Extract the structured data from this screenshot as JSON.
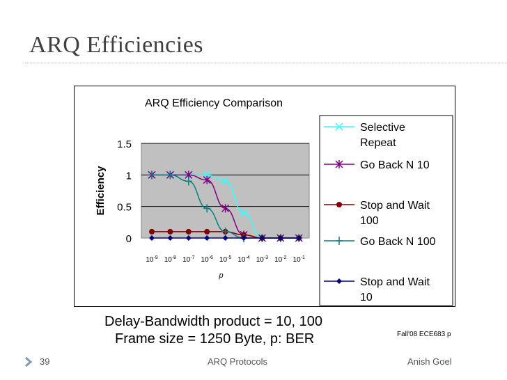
{
  "slide": {
    "title": "ARQ Efficiencies",
    "caption_line1": "Delay-Bandwidth product = 10, 100",
    "caption_line2": "Frame size = 1250 Byte, p: BER",
    "course_tag": "Fall'08 ECE683  p",
    "footer": {
      "page_number": "39",
      "center": "ARQ Protocols",
      "author": "Anish Goel"
    }
  },
  "chart_data": {
    "type": "line",
    "title": "ARQ Efficiency Comparison",
    "xlabel": "p",
    "ylabel": "Efficiency",
    "ylim": [
      0,
      1.5
    ],
    "yticks": [
      "0",
      "0.5",
      "1",
      "1.5"
    ],
    "x": [
      "1e-9",
      "1e-8",
      "1e-7",
      "1e-6",
      "1e-5",
      "1e-4",
      "1e-3",
      "1e-2",
      "1e-1"
    ],
    "xtick_base": [
      "10",
      "10",
      "10",
      "10",
      "10",
      "10",
      "10",
      "10",
      "10"
    ],
    "xtick_exp": [
      "-9",
      "-8",
      "-7",
      "-6",
      "-5",
      "-4",
      "-3",
      "-2",
      "-1"
    ],
    "grid": true,
    "plot_background": "#c0c0c0",
    "legend_position": "right",
    "series": [
      {
        "name": "Selective Repeat",
        "legend_lines": [
          "Selective",
          "Repeat"
        ],
        "color": "#33ffff",
        "marker": "x",
        "values": [
          1.0,
          1.0,
          1.0,
          1.0,
          0.9,
          0.4,
          0.0,
          0.0,
          0.0
        ]
      },
      {
        "name": "Go Back N 10",
        "legend_lines": [
          "Go Back N 10"
        ],
        "color": "#800080",
        "marker": "asterisk",
        "values": [
          1.0,
          1.0,
          1.0,
          0.92,
          0.47,
          0.05,
          0.0,
          0.0,
          0.0
        ]
      },
      {
        "name": "Stop and Wait 100",
        "legend_lines": [
          "Stop and Wait",
          "100"
        ],
        "color": "#800000",
        "marker": "circle",
        "values": [
          0.1,
          0.1,
          0.1,
          0.1,
          0.1,
          0.05,
          0.0,
          0.0,
          0.0
        ]
      },
      {
        "name": "Go Back N 100",
        "legend_lines": [
          "Go Back N 100"
        ],
        "color": "#008080",
        "marker": "plus",
        "values": [
          1.0,
          1.0,
          0.9,
          0.47,
          0.1,
          0.0,
          0.0,
          0.0,
          0.0
        ]
      },
      {
        "name": "Stop and Wait 10",
        "legend_lines": [
          "Stop and Wait",
          "10"
        ],
        "color": "#000080",
        "marker": "diamond",
        "values": [
          0.0,
          0.0,
          0.0,
          0.0,
          0.0,
          0.0,
          0.0,
          0.0,
          0.0
        ]
      }
    ]
  }
}
